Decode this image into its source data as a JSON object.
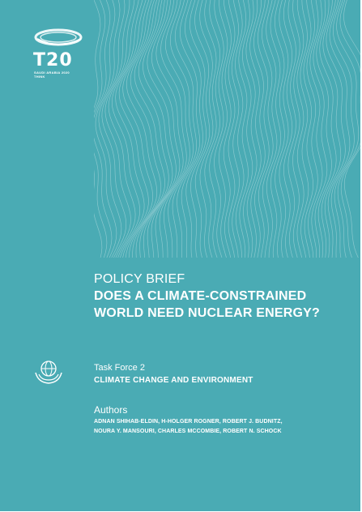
{
  "logo": {
    "wordmark": "T20",
    "subtitle_line1": "SAUDI ARABIA 2020",
    "subtitle_line2": "THINK"
  },
  "brief": {
    "kicker": "POLICY BRIEF",
    "title": "DOES A CLIMATE-CONSTRAINED WORLD NEED NUCLEAR ENERGY?"
  },
  "task_force": {
    "label": "Task Force 2",
    "name": "CLIMATE CHANGE AND ENVIRONMENT",
    "icon": "globe-in-hands-icon"
  },
  "authors": {
    "label": "Authors",
    "line1": "ADNAN SHIHAB-ELDIN, H-HOLGER ROGNER, ROBERT J. BUDNITZ,",
    "line2": "NOURA Y. MANSOURI, CHARLES MCCOMBIE, ROBERT N. SCHOCK"
  },
  "colors": {
    "background": "#4aabb4",
    "text": "#ffffff"
  }
}
